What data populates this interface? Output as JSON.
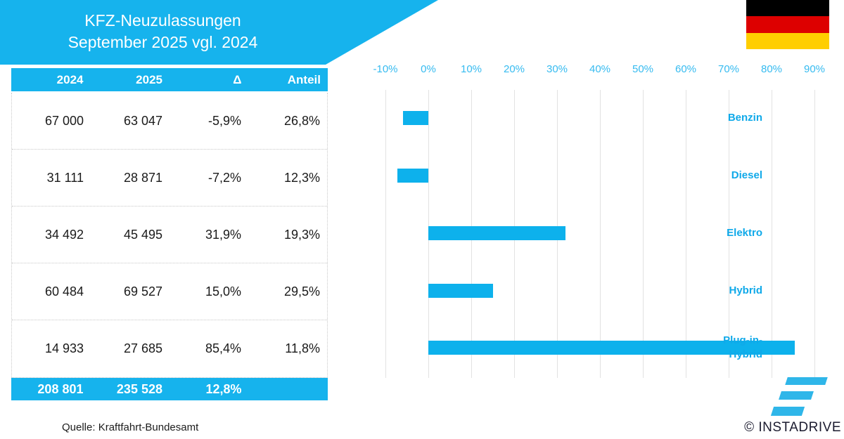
{
  "title": {
    "line1": "KFZ-Neuzulassungen",
    "line2": "September 2025 vgl. 2024"
  },
  "flag": {
    "name": "german-flag",
    "colors": [
      "#000000",
      "#dd0000",
      "#ffce00"
    ]
  },
  "table": {
    "headers": [
      "2024",
      "2025",
      "Δ",
      "Anteil"
    ],
    "rows": [
      {
        "label": "Benzin",
        "y2024": "67 000",
        "y2025": "63 047",
        "delta": "-5,9%",
        "anteil": "26,8%"
      },
      {
        "label": "Diesel",
        "y2024": "31 111",
        "y2025": "28 871",
        "delta": "-7,2%",
        "anteil": "12,3%"
      },
      {
        "label": "Elektro",
        "y2024": "34 492",
        "y2025": "45 495",
        "delta": "31,9%",
        "anteil": "19,3%"
      },
      {
        "label": "Hybrid",
        "y2024": "60 484",
        "y2025": "69 527",
        "delta": "15,0%",
        "anteil": "29,5%"
      },
      {
        "label": "Plug-in-Hybrid",
        "y2024": "14 933",
        "y2025": "27 685",
        "delta": "85,4%",
        "anteil": "11,8%"
      }
    ],
    "total": {
      "y2024": "208 801",
      "y2025": "235 528",
      "delta": "12,8%"
    }
  },
  "source": "Quelle: Kraftfahrt-Bundesamt",
  "chart_data": {
    "type": "bar",
    "orientation": "horizontal",
    "title": "KFZ-Neuzulassungen September 2025 vgl. 2024",
    "categories": [
      "Benzin",
      "Diesel",
      "Elektro",
      "Hybrid",
      "Plug-in-Hybrid"
    ],
    "category_display_lines": [
      [
        "Benzin"
      ],
      [
        "Diesel"
      ],
      [
        "Elektro"
      ],
      [
        "Hybrid"
      ],
      [
        "Plug-in-",
        "Hybrid"
      ]
    ],
    "values": [
      -5.9,
      -7.2,
      31.9,
      15.0,
      85.4
    ],
    "unit": "%",
    "xlim": [
      -10,
      90
    ],
    "x_ticks": [
      "-10%",
      "0%",
      "10%",
      "20%",
      "30%",
      "40%",
      "50%",
      "60%",
      "70%",
      "80%",
      "90%"
    ],
    "grid": true,
    "legend": false,
    "bar_color": "#0db1ec"
  },
  "branding": {
    "copyright": "© INSTADRIVE",
    "logo": "instadrive-logo"
  },
  "colors": {
    "accent": "#16b3ed",
    "bar": "#0db1ec",
    "axis_label": "#36bbf0",
    "category_label": "#0fa9e9",
    "gridline": "#e2e2e2",
    "text": "#1a1a1a"
  }
}
